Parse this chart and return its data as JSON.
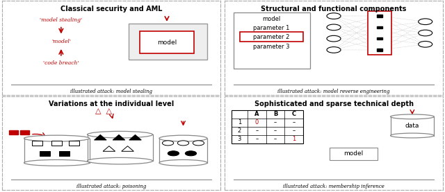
{
  "title_tl": "Classical security and AML",
  "title_tr": "Structural and functional components",
  "title_bl": "Variations at the individual level",
  "title_br": "Sophisticated and sparse technical depth",
  "caption_tl": "illustrated attack: model stealing",
  "caption_tr": "illustrated attack: model reverse engineering",
  "caption_bl": "illustrated attack: poisoning",
  "caption_br": "illustrated attack: membership inference",
  "red": "#c00000",
  "bg": "#ffffff",
  "gray": "#888888",
  "lightgray": "#cccccc",
  "panel_border": "#aaaaaa"
}
